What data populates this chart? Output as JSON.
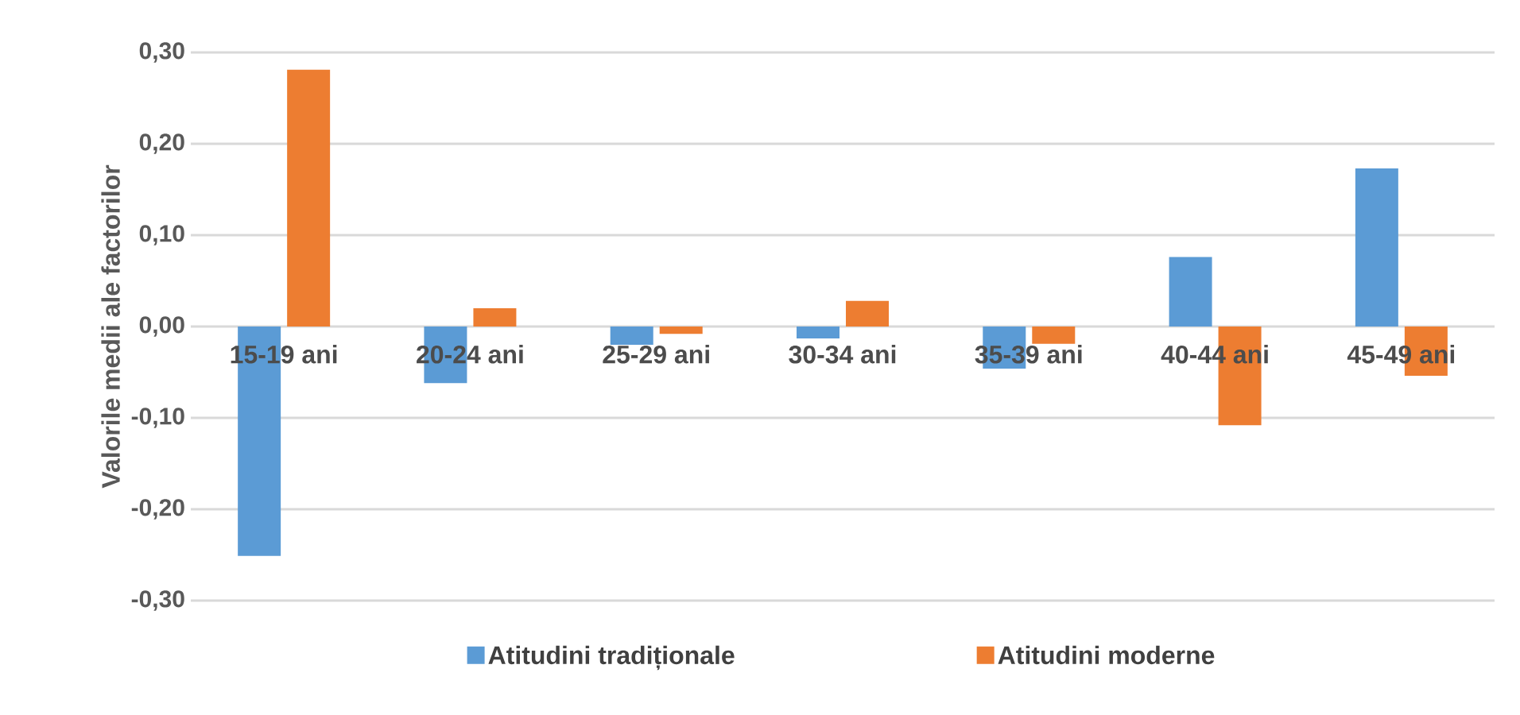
{
  "chart_data": {
    "type": "bar",
    "ylabel": "Valorile medii ale factorilor",
    "categories": [
      "15-19 ani",
      "20-24 ani",
      "25-29 ani",
      "30-34 ani",
      "35-39 ani",
      "40-44 ani",
      "45-49 ani"
    ],
    "series": [
      {
        "name": "Atitudini tradiționale",
        "color": "#5b9bd5",
        "values": [
          -0.251,
          -0.062,
          -0.02,
          -0.013,
          -0.046,
          0.076,
          0.173
        ]
      },
      {
        "name": "Atitudini moderne",
        "color": "#ed7d31",
        "values": [
          0.281,
          0.02,
          -0.008,
          0.028,
          -0.019,
          -0.108,
          -0.054
        ]
      }
    ],
    "ylim": [
      -0.3,
      0.3
    ],
    "yticks": [
      {
        "value": -0.3,
        "label": "-0,30"
      },
      {
        "value": -0.2,
        "label": "-0,20"
      },
      {
        "value": -0.1,
        "label": "-0,10"
      },
      {
        "value": 0,
        "label": "0,00"
      },
      {
        "value": 0.1,
        "label": "0,10"
      },
      {
        "value": 0.2,
        "label": "0,20"
      },
      {
        "value": 0.3,
        "label": "0,30"
      }
    ],
    "grid": true,
    "legend": "bottom"
  }
}
